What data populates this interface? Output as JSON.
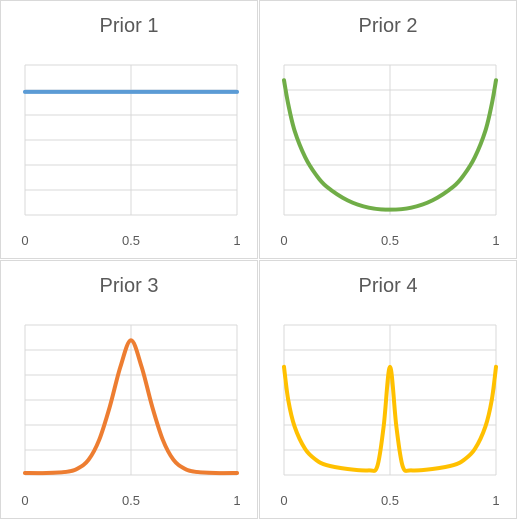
{
  "chart_data": [
    {
      "type": "line",
      "title": "Prior 1",
      "x_ticks": [
        "0",
        "0.5",
        "1"
      ],
      "xlim": [
        0,
        1
      ],
      "grid": true,
      "color": "#5b9bd5",
      "series": [
        {
          "x": [
            0,
            0.25,
            0.5,
            0.75,
            1
          ],
          "values": [
            1,
            1,
            1,
            1,
            1
          ]
        }
      ]
    },
    {
      "type": "line",
      "title": "Prior 2",
      "x_ticks": [
        "0",
        "0.5",
        "1"
      ],
      "xlim": [
        0,
        1
      ],
      "grid": true,
      "color": "#70ad47",
      "series": [
        {
          "x": [
            0,
            0.02,
            0.05,
            0.1,
            0.15,
            0.2,
            0.3,
            0.4,
            0.5,
            0.6,
            0.7,
            0.8,
            0.85,
            0.9,
            0.95,
            0.98,
            1
          ],
          "values": [
            1.0,
            0.82,
            0.62,
            0.42,
            0.29,
            0.2,
            0.095,
            0.04,
            0.025,
            0.04,
            0.095,
            0.2,
            0.29,
            0.42,
            0.62,
            0.82,
            1.0
          ]
        }
      ]
    },
    {
      "type": "line",
      "title": "Prior 3",
      "x_ticks": [
        "0",
        "0.5",
        "1"
      ],
      "xlim": [
        0,
        1
      ],
      "grid": true,
      "color": "#ed7d31",
      "series": [
        {
          "x": [
            0,
            0.1,
            0.2,
            0.25,
            0.3,
            0.35,
            0.4,
            0.45,
            0.5,
            0.55,
            0.6,
            0.65,
            0.7,
            0.75,
            0.8,
            0.9,
            1
          ],
          "values": [
            0,
            0,
            0.01,
            0.035,
            0.1,
            0.25,
            0.5,
            0.8,
            1.0,
            0.8,
            0.5,
            0.25,
            0.1,
            0.035,
            0.01,
            0,
            0
          ]
        }
      ]
    },
    {
      "type": "line",
      "title": "Prior 4",
      "x_ticks": [
        "0",
        "0.5",
        "1"
      ],
      "xlim": [
        0,
        1
      ],
      "grid": true,
      "color": "#ffc000",
      "series": [
        {
          "x": [
            0,
            0.02,
            0.05,
            0.1,
            0.15,
            0.2,
            0.3,
            0.4,
            0.44,
            0.47,
            0.5,
            0.53,
            0.56,
            0.6,
            0.7,
            0.8,
            0.85,
            0.9,
            0.95,
            0.98,
            1
          ],
          "values": [
            0.8,
            0.55,
            0.35,
            0.18,
            0.1,
            0.06,
            0.03,
            0.02,
            0.05,
            0.35,
            0.8,
            0.35,
            0.05,
            0.02,
            0.03,
            0.06,
            0.1,
            0.18,
            0.35,
            0.55,
            0.8
          ]
        }
      ]
    }
  ]
}
